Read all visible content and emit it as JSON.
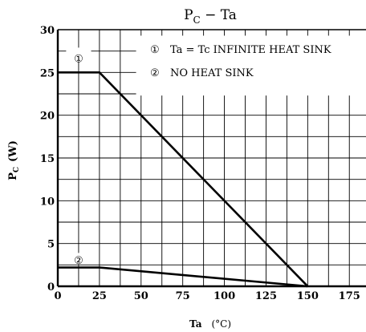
{
  "chart_data": {
    "type": "line",
    "title": "P",
    "title_sub": "C",
    "title_rest": " − Ta",
    "ylabel_main": "P",
    "ylabel_sub": "C",
    "ylabel_unit": "(W)",
    "xlabel": "Ta",
    "xlabel_unit": "(°C)",
    "x_ticks": [
      "0",
      "25",
      "50",
      "75",
      "100",
      "125",
      "150",
      "175"
    ],
    "y_ticks": [
      "0",
      "5",
      "10",
      "15",
      "20",
      "25",
      "30"
    ],
    "xlim": [
      0,
      185
    ],
    "ylim": [
      0,
      30
    ],
    "grid": true,
    "grid_minor_step_x": 12.5,
    "grid_minor_step_y": 2.5,
    "legend_position": "top-right",
    "series": [
      {
        "marker": "①",
        "name": "Ta = Tc INFINITE HEAT SINK",
        "x": [
          0,
          25,
          150
        ],
        "y": [
          25,
          25,
          0
        ]
      },
      {
        "marker": "②",
        "name": "NO HEAT SINK",
        "x": [
          0,
          25,
          150
        ],
        "y": [
          2.2,
          2.2,
          0
        ]
      }
    ]
  }
}
